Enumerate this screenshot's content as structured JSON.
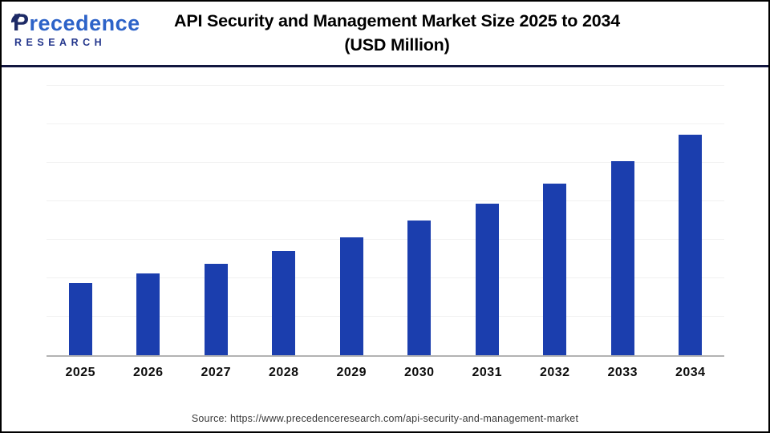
{
  "header": {
    "logo": {
      "brand_initial": "P",
      "brand_rest": "recedence",
      "subtitle": "RESEARCH"
    },
    "title_line1": "API Security and Management Market Size 2025 to 2034",
    "title_line2": "(USD Million)"
  },
  "chart_data": {
    "type": "bar",
    "title": "API Security and Management Market Size 2025 to 2034 (USD Million)",
    "categories": [
      "2025",
      "2026",
      "2027",
      "2028",
      "2029",
      "2030",
      "2031",
      "2032",
      "2033",
      "2034"
    ],
    "values": [
      1.88,
      2.12,
      2.38,
      2.71,
      3.06,
      3.5,
      3.94,
      4.46,
      5.04,
      5.73
    ],
    "value_unit": "relative gridline units (y-axis has no visible tick labels)",
    "xlabel": "",
    "ylabel": "",
    "ylim": [
      0,
      7.17
    ],
    "grid": true,
    "grid_interval": 1,
    "legend": false,
    "y_tick_labels_visible": false,
    "bar_color": "#1b3eae"
  },
  "footer": {
    "source": "Source: https://www.precedenceresearch.com/api-security-and-management-market"
  },
  "colors": {
    "bar_blue": "#1b3eae",
    "divider_navy": "#12163f",
    "axis_gray": "#b3b3b3",
    "gridline_gray": "#f1f1f1",
    "logo_blue": "#2d63c8",
    "logo_navy": "#1d2a66",
    "frame_border": "#000000"
  }
}
